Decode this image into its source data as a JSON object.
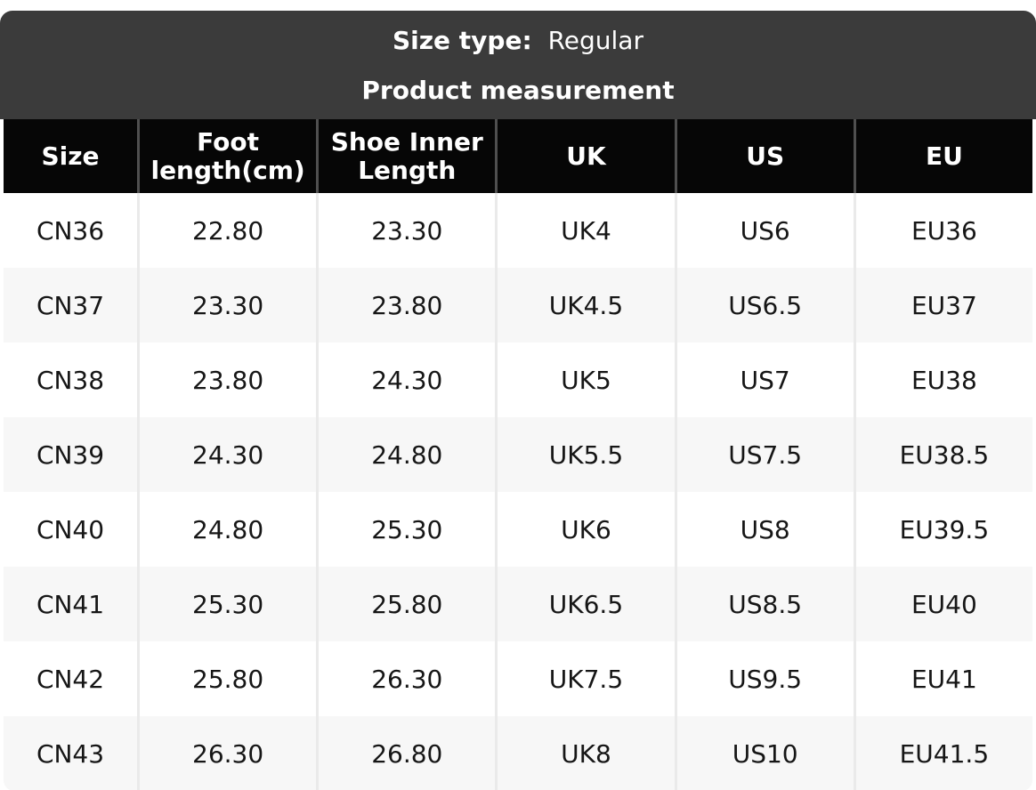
{
  "size_type": {
    "label": "Size type:",
    "value": "Regular"
  },
  "title": "Product measurement",
  "chart_data": {
    "type": "table",
    "title": "Product measurement",
    "subtitle": "Size type: Regular",
    "columns": [
      "Size",
      "Foot length(cm)",
      "Shoe Inner Length",
      "UK",
      "US",
      "EU"
    ],
    "rows": [
      [
        "CN36",
        "22.80",
        "23.30",
        "UK4",
        "US6",
        "EU36"
      ],
      [
        "CN37",
        "23.30",
        "23.80",
        "UK4.5",
        "US6.5",
        "EU37"
      ],
      [
        "CN38",
        "23.80",
        "24.30",
        "UK5",
        "US7",
        "EU38"
      ],
      [
        "CN39",
        "24.30",
        "24.80",
        "UK5.5",
        "US7.5",
        "EU38.5"
      ],
      [
        "CN40",
        "24.80",
        "25.30",
        "UK6",
        "US8",
        "EU39.5"
      ],
      [
        "CN41",
        "25.30",
        "25.80",
        "UK6.5",
        "US8.5",
        "EU40"
      ],
      [
        "CN42",
        "25.80",
        "26.30",
        "UK7.5",
        "US9.5",
        "EU41"
      ],
      [
        "CN43",
        "26.30",
        "26.80",
        "UK8",
        "US10",
        "EU41.5"
      ]
    ],
    "layout": {
      "zebra_striping": true,
      "header_position": "top"
    }
  },
  "colors": {
    "band_bg": "#3b3b3b",
    "header_bg": "#060606",
    "header_text": "#ffffff",
    "alt_row_bg": "#f7f7f7",
    "body_text": "#161616",
    "header_divider": "#4f4f4f",
    "body_divider": "#eaeaea"
  }
}
